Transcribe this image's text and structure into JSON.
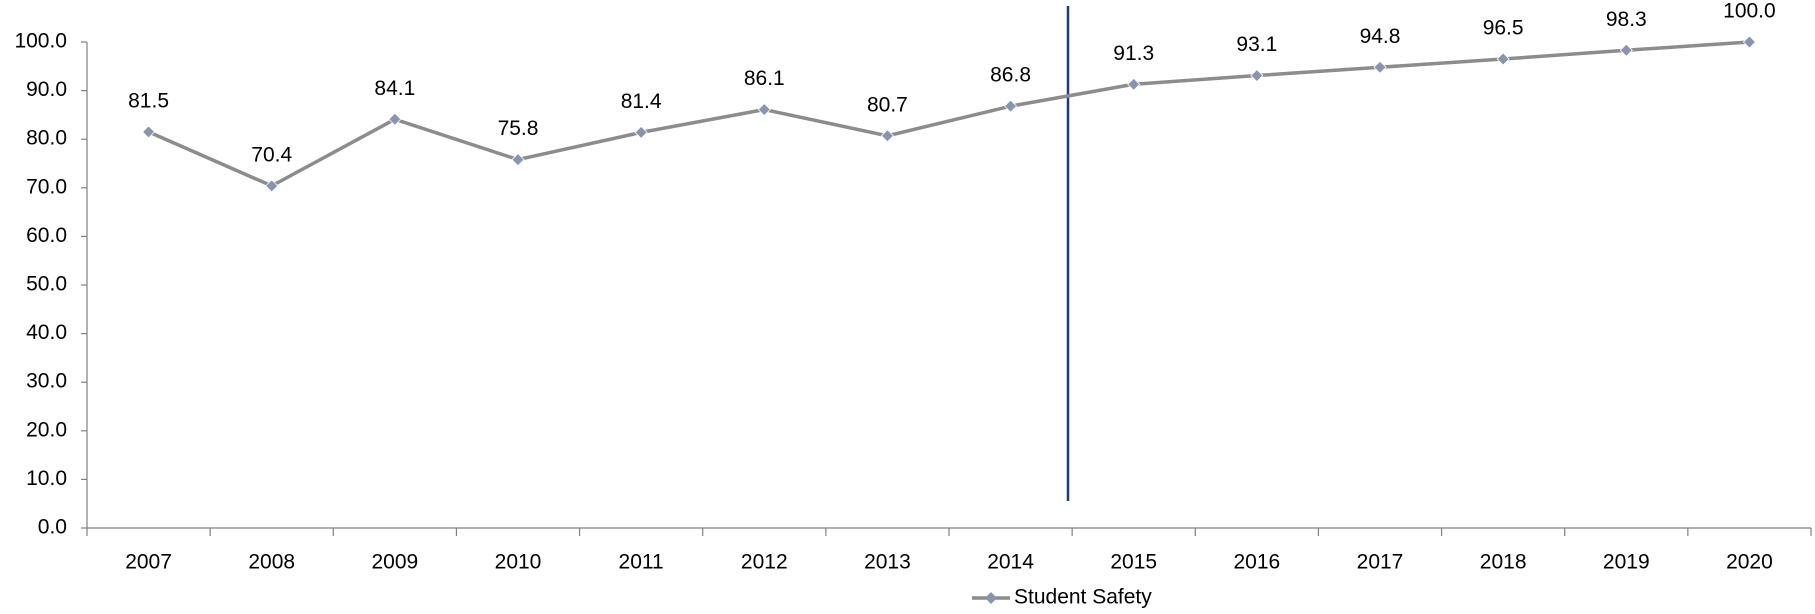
{
  "chart_data": {
    "type": "line",
    "categories": [
      "2007",
      "2008",
      "2009",
      "2010",
      "2011",
      "2012",
      "2013",
      "2014",
      "2015",
      "2016",
      "2017",
      "2018",
      "2019",
      "2020"
    ],
    "series": [
      {
        "name": "Student Safety",
        "color": "#8c8c8c",
        "marker_color": "#8796ad",
        "values": [
          81.5,
          70.4,
          84.1,
          75.8,
          81.4,
          86.1,
          80.7,
          86.8,
          91.3,
          93.1,
          94.8,
          96.5,
          98.3,
          100.0
        ],
        "value_labels": [
          "81.5",
          "70.4",
          "84.1",
          "75.8",
          "81.4",
          "86.1",
          "80.7",
          "86.8",
          "91.3",
          "93.1",
          "94.8",
          "96.5",
          "98.3",
          "100.0"
        ]
      }
    ],
    "ylim": [
      0,
      100
    ],
    "yticks": [
      {
        "value": 0,
        "label": "0.0"
      },
      {
        "value": 10,
        "label": "10.0"
      },
      {
        "value": 20,
        "label": "20.0"
      },
      {
        "value": 30,
        "label": "30.0"
      },
      {
        "value": 40,
        "label": "40.0"
      },
      {
        "value": 50,
        "label": "50.0"
      },
      {
        "value": 60,
        "label": "60.0"
      },
      {
        "value": 70,
        "label": "70.0"
      },
      {
        "value": 80,
        "label": "80.0"
      },
      {
        "value": 90,
        "label": "90.0"
      },
      {
        "value": 100,
        "label": "100.0"
      }
    ],
    "grid": false,
    "legend": "bottom"
  }
}
